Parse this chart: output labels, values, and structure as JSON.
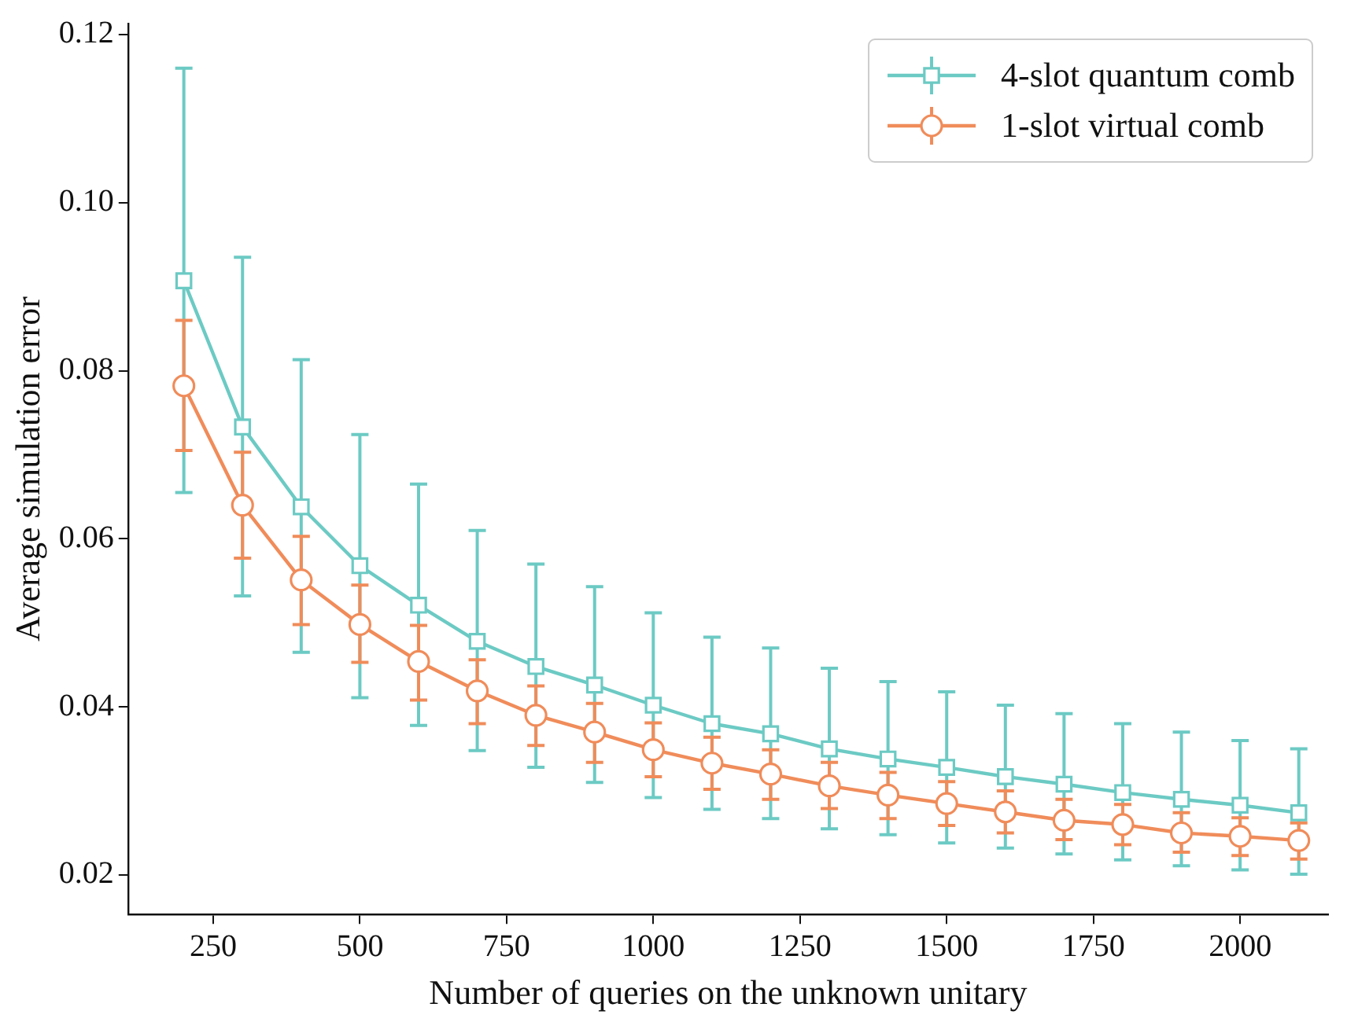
{
  "chart_data": {
    "type": "line",
    "xlabel": "Number of queries on the unknown unitary",
    "ylabel": "Average simulation error",
    "x": [
      200,
      300,
      400,
      500,
      600,
      700,
      800,
      900,
      1000,
      1100,
      1200,
      1300,
      1400,
      1500,
      1600,
      1700,
      1800,
      1900,
      2000,
      2100
    ],
    "series": [
      {
        "name": "4-slot quantum comb",
        "color": "#6ccac4",
        "marker": "square",
        "values": [
          0.0907,
          0.0733,
          0.0638,
          0.0568,
          0.0521,
          0.0478,
          0.0448,
          0.0426,
          0.0402,
          0.038,
          0.0368,
          0.035,
          0.0338,
          0.0328,
          0.0317,
          0.0308,
          0.0298,
          0.029,
          0.0283,
          0.0274
        ],
        "errors": [
          [
            0.0655,
            0.116
          ],
          [
            0.0532,
            0.0935
          ],
          [
            0.0465,
            0.0813
          ],
          [
            0.0411,
            0.0724
          ],
          [
            0.0378,
            0.0665
          ],
          [
            0.0348,
            0.061
          ],
          [
            0.0328,
            0.057
          ],
          [
            0.031,
            0.0543
          ],
          [
            0.0292,
            0.0512
          ],
          [
            0.0278,
            0.0483
          ],
          [
            0.0267,
            0.047
          ],
          [
            0.0255,
            0.0446
          ],
          [
            0.0248,
            0.043
          ],
          [
            0.0238,
            0.0418
          ],
          [
            0.0232,
            0.0402
          ],
          [
            0.0225,
            0.0392
          ],
          [
            0.0218,
            0.038
          ],
          [
            0.0211,
            0.037
          ],
          [
            0.0206,
            0.036
          ],
          [
            0.0201,
            0.035
          ]
        ]
      },
      {
        "name": "1-slot virtual comb",
        "color": "#f08c5a",
        "marker": "circle",
        "values": [
          0.0782,
          0.064,
          0.0551,
          0.0498,
          0.0454,
          0.0419,
          0.039,
          0.037,
          0.0349,
          0.0333,
          0.032,
          0.0306,
          0.0295,
          0.0285,
          0.0275,
          0.0265,
          0.026,
          0.025,
          0.0246,
          0.0241
        ],
        "errors": [
          [
            0.0705,
            0.086
          ],
          [
            0.0577,
            0.0703
          ],
          [
            0.0498,
            0.0603
          ],
          [
            0.0453,
            0.0545
          ],
          [
            0.0408,
            0.0497
          ],
          [
            0.038,
            0.0456
          ],
          [
            0.0354,
            0.0425
          ],
          [
            0.0334,
            0.0404
          ],
          [
            0.0317,
            0.0381
          ],
          [
            0.0302,
            0.0364
          ],
          [
            0.029,
            0.0349
          ],
          [
            0.0279,
            0.0334
          ],
          [
            0.0267,
            0.0322
          ],
          [
            0.0259,
            0.0311
          ],
          [
            0.025,
            0.03
          ],
          [
            0.0242,
            0.029
          ],
          [
            0.0236,
            0.0284
          ],
          [
            0.0227,
            0.0274
          ],
          [
            0.0223,
            0.0268
          ],
          [
            0.0219,
            0.0262
          ]
        ]
      }
    ],
    "xlim": [
      105,
      2150
    ],
    "ylim": [
      0.0153,
      0.1213
    ],
    "xticks": [
      250,
      500,
      750,
      1000,
      1250,
      1500,
      1750,
      2000
    ],
    "yticks": [
      0.02,
      0.04,
      0.06,
      0.08,
      {
        "value": 0.1,
        "label": "0.10"
      },
      0.12
    ],
    "grid": false,
    "legend": "top right",
    "line_style": "solid"
  }
}
